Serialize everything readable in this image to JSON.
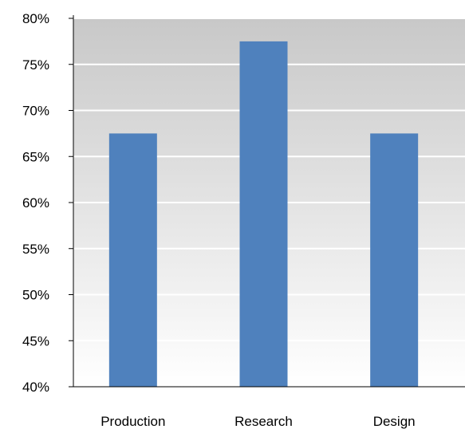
{
  "chart_data": {
    "type": "bar",
    "title": "",
    "xlabel": "",
    "ylabel": "",
    "categories": [
      "Production",
      "Research",
      "Design"
    ],
    "values": [
      67.5,
      77.5,
      67.5
    ],
    "ylim": [
      40,
      80
    ],
    "yticks": [
      "40%",
      "45%",
      "50%",
      "55%",
      "60%",
      "65%",
      "70%",
      "75%",
      "80%"
    ],
    "grid": true,
    "legend": "none",
    "colors": {
      "bar": "#4f81bd",
      "grid": "#ffffff",
      "axis": "#000000",
      "plot_bg_top": "#c8c8c8",
      "plot_bg_bottom": "#ffffff"
    }
  }
}
